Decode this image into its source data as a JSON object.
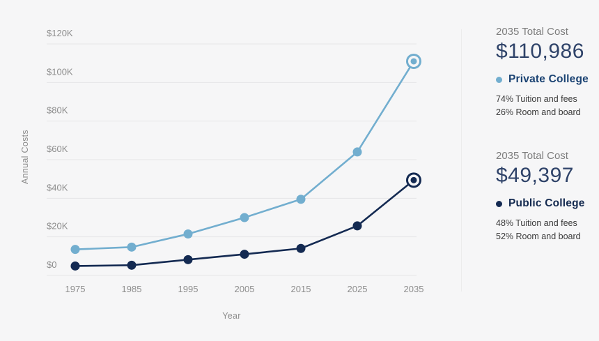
{
  "colors": {
    "background": "#f6f6f7",
    "grid": "#e5e5e7",
    "axis_text": "#8d8d8d",
    "divider": "#ececec",
    "amount_text": "#2f4369",
    "heading_text": "#7d7d7d",
    "breakdown_text": "#3a3a3a",
    "private_series": "#72aecf",
    "public_series": "#142a52"
  },
  "chart_data": {
    "type": "line",
    "title": "",
    "xlabel": "Year",
    "ylabel": "Annual Costs",
    "ylim": [
      0,
      120000
    ],
    "grid": true,
    "legend_position": "right-panel",
    "x": [
      1975,
      1985,
      1995,
      2005,
      2015,
      2025,
      2035
    ],
    "x_tick_labels": [
      "1975",
      "1985",
      "1995",
      "2005",
      "2015",
      "2025",
      "2035"
    ],
    "y_ticks": [
      {
        "label": "$120K",
        "value": 120000
      },
      {
        "label": "$100K",
        "value": 100000
      },
      {
        "label": "$80K",
        "value": 80000
      },
      {
        "label": "$60K",
        "value": 60000
      },
      {
        "label": "$40K",
        "value": 40000
      },
      {
        "label": "$20K",
        "value": 20000
      },
      {
        "label": "$0",
        "value": 0
      }
    ],
    "series": [
      {
        "name": "Private College",
        "color": "#72aecf",
        "values": [
          13500,
          14700,
          21500,
          30000,
          39500,
          64000,
          110986
        ],
        "final_marker": "ring"
      },
      {
        "name": "Public College",
        "color": "#142a52",
        "values": [
          4900,
          5300,
          8200,
          11000,
          14000,
          25700,
          49397
        ],
        "final_marker": "ring"
      }
    ]
  },
  "summary_panel": {
    "amount_color": "#2f4369",
    "blocks": [
      {
        "heading": "2035 Total Cost",
        "amount": "$110,986",
        "series": "Private College",
        "series_color": "#72aecf",
        "label_color": "#1a4272",
        "breakdown": [
          "74% Tuition and fees",
          "26% Room and board"
        ]
      },
      {
        "heading": "2035 Total Cost",
        "amount": "$49,397",
        "series": "Public College",
        "series_color": "#142a52",
        "label_color": "#13294f",
        "breakdown": [
          "48% Tuition and fees",
          "52% Room and board"
        ]
      }
    ]
  }
}
